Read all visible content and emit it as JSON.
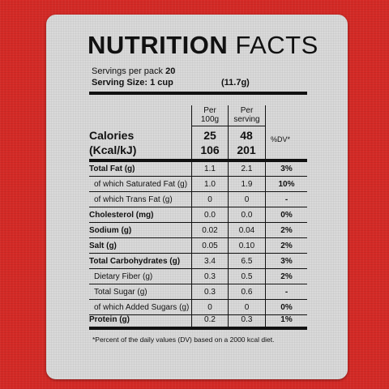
{
  "label": {
    "title_bold": "NUTRITION",
    "title_light": "FACTS",
    "servings_per_pack_label": "Servings per pack",
    "servings_per_pack_value": "20",
    "serving_size": "Serving Size: 1 cup",
    "serving_weight": "(11.7g)",
    "col_per100_line1": "Per",
    "col_per100_line2": "100g",
    "col_serving_line1": "Per",
    "col_serving_line2": "serving",
    "calories_label": "Calories",
    "energy_label": "(Kcal/kJ)",
    "dv_header": "%DV*",
    "kcal_per100": "25",
    "kcal_serving": "48",
    "kj_per100": "106",
    "kj_serving": "201",
    "footnote": "*Percent of the daily values (DV) based on a 2000 kcal diet."
  },
  "rows": [
    {
      "name": "Total Fat (g)",
      "per100": "1.1",
      "serving": "2.1",
      "dv": "3%"
    },
    {
      "name": "of which Saturated Fat (g)",
      "per100": "1.0",
      "serving": "1.9",
      "dv": "10%"
    },
    {
      "name": "of which Trans Fat (g)",
      "per100": "0",
      "serving": "0",
      "dv": "-"
    },
    {
      "name": "Cholesterol (mg)",
      "per100": "0.0",
      "serving": "0.0",
      "dv": "0%"
    },
    {
      "name": "Sodium (g)",
      "per100": "0.02",
      "serving": "0.04",
      "dv": "2%"
    },
    {
      "name": "Salt (g)",
      "per100": "0.05",
      "serving": "0.10",
      "dv": "2%"
    },
    {
      "name": "Total Carbohydrates (g)",
      "per100": "3.4",
      "serving": "6.5",
      "dv": "3%"
    },
    {
      "name": "Dietary Fiber (g)",
      "per100": "0.3",
      "serving": "0.5",
      "dv": "2%"
    },
    {
      "name": "Total Sugar (g)",
      "per100": "0.3",
      "serving": "0.6",
      "dv": "-"
    },
    {
      "name": "of which Added Sugars (g)",
      "per100": "0",
      "serving": "0",
      "dv": "0%"
    },
    {
      "name": "Protein (g)",
      "per100": "0.2",
      "serving": "0.3",
      "dv": "1%"
    }
  ],
  "colors": {
    "background": "#d42a26",
    "panel": "#d9d9d9",
    "ink": "#111111"
  }
}
